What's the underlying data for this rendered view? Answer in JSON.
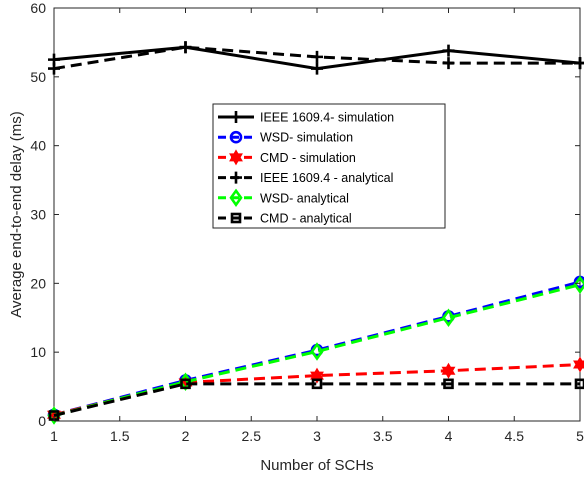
{
  "chart_data": {
    "type": "line",
    "xlabel": "Number of SCHs",
    "ylabel": "Average end-to-end delay (ms)",
    "xlim": [
      1,
      5
    ],
    "ylim": [
      0,
      60
    ],
    "x_ticks": [
      "1",
      "1.5",
      "2",
      "2.5",
      "3",
      "3.5",
      "4",
      "4.5",
      "5"
    ],
    "y_ticks": [
      "0",
      "10",
      "20",
      "30",
      "40",
      "50",
      "60"
    ],
    "grid": false,
    "legend_position": "center",
    "x": [
      1,
      2,
      3,
      4,
      5
    ],
    "series": [
      {
        "name": "IEEE 1609.4- simulation",
        "values": [
          52.5,
          54.3,
          51.2,
          53.8,
          52.0
        ],
        "color": "#000000",
        "dash": "solid",
        "marker": "plus"
      },
      {
        "name": "WSD- simulation",
        "values": [
          0.9,
          5.9,
          10.3,
          15.2,
          20.2
        ],
        "color": "#0000ff",
        "dash": "dashed",
        "marker": "circle"
      },
      {
        "name": "CMD - simulation",
        "values": [
          0.9,
          5.6,
          6.6,
          7.3,
          8.2
        ],
        "color": "#ff0000",
        "dash": "dashed",
        "marker": "hexagram"
      },
      {
        "name": "IEEE 1609.4 - analytical",
        "values": [
          51.2,
          54.3,
          52.9,
          52.0,
          52.0
        ],
        "color": "#000000",
        "dash": "dashed",
        "marker": "plus"
      },
      {
        "name": "WSD- analytical",
        "values": [
          0.8,
          5.7,
          10.1,
          15.0,
          19.8
        ],
        "color": "#00ff00",
        "dash": "dashed",
        "marker": "diamond"
      },
      {
        "name": "CMD - analytical",
        "values": [
          0.8,
          5.4,
          5.4,
          5.4,
          5.4
        ],
        "color": "#000000",
        "dash": "dashed",
        "marker": "square"
      }
    ]
  }
}
